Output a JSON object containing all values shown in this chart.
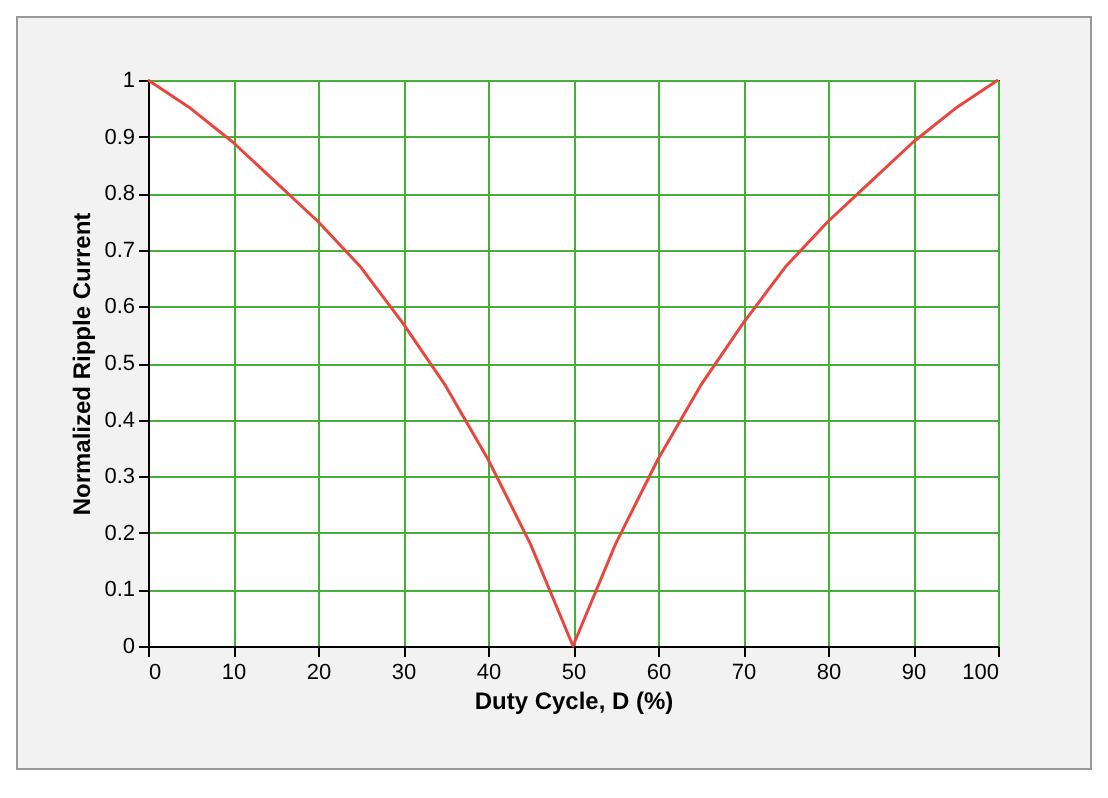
{
  "chart_data": {
    "type": "line",
    "xlabel": "Duty Cycle, D (%)",
    "ylabel": "Normalized Ripple Current",
    "x": [
      0,
      5,
      10,
      15,
      20,
      25,
      30,
      35,
      40,
      45,
      50,
      55,
      60,
      65,
      70,
      75,
      80,
      85,
      90,
      95,
      100
    ],
    "series": [
      {
        "color": "#e8453c",
        "values": [
          1,
          0.95,
          0.89,
          0.82,
          0.75,
          0.67,
          0.57,
          0.46,
          0.33,
          0.18,
          0,
          0.18,
          0.33,
          0.46,
          0.57,
          0.67,
          0.75,
          0.82,
          0.89,
          0.95,
          1
        ]
      }
    ],
    "xlim": [
      0,
      100
    ],
    "ylim": [
      0,
      1
    ],
    "xticks": [
      0,
      10,
      20,
      30,
      40,
      50,
      60,
      70,
      80,
      90,
      100
    ],
    "yticks": [
      0,
      0.1,
      0.2,
      0.3,
      0.4,
      0.5,
      0.6,
      0.7,
      0.8,
      0.9,
      1
    ],
    "grid": true,
    "marker": "none",
    "line_style": "solid"
  }
}
